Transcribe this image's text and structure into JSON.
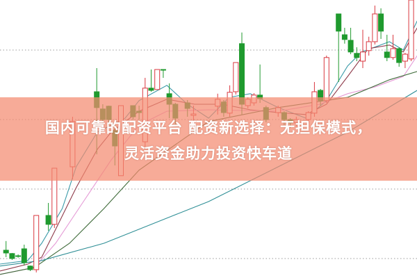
{
  "headline": {
    "line1": "国内可靠的配资平台 配资新选择：无担保模式，",
    "line2": "灵活资金助力投资快车道"
  },
  "chart_data": {
    "type": "candlestick",
    "title": "",
    "xlabel": "",
    "ylabel": "",
    "grid": true,
    "ylim": [
      0,
      100
    ],
    "colors": {
      "up": "#d9363e",
      "down": "#1f9a2e",
      "banner": "#f48a70"
    },
    "candles_fields": [
      "x",
      "open",
      "close",
      "high",
      "low"
    ],
    "candles": [
      [
        1,
        10,
        9,
        13.3,
        7.5
      ],
      [
        2,
        8.8,
        7,
        9,
        6.5
      ],
      [
        3,
        8,
        7.8,
        8.5,
        7.3
      ],
      [
        4,
        10.5,
        5.5,
        12,
        4.5
      ],
      [
        5,
        4.3,
        3,
        4.5,
        2.5
      ],
      [
        6,
        3,
        22.5,
        22.5,
        2
      ],
      [
        8,
        22.5,
        19.3,
        27,
        17
      ],
      [
        9,
        19.3,
        39.5,
        39.5,
        18
      ],
      [
        12,
        40,
        56.3,
        58,
        35.5
      ],
      [
        16,
        67,
        61.3,
        75.5,
        44.5
      ],
      [
        17,
        60.8,
        57,
        62.5,
        55
      ],
      [
        18,
        61.8,
        57,
        62,
        55
      ],
      [
        19,
        53,
        47.5,
        55,
        40.5
      ],
      [
        20,
        36.8,
        62,
        62,
        36.8
      ],
      [
        22,
        62,
        58,
        62,
        57
      ],
      [
        23,
        60,
        59.5,
        62,
        57
      ],
      [
        24,
        49,
        68.3,
        72,
        47
      ],
      [
        25,
        68.3,
        67.5,
        75,
        67
      ],
      [
        26,
        67.8,
        75,
        75,
        67.8
      ],
      [
        27,
        75,
        74.8,
        75,
        72
      ],
      [
        28,
        66.3,
        62.5,
        70,
        57.5
      ],
      [
        29,
        62.5,
        57.5,
        63,
        55
      ],
      [
        31,
        63,
        61,
        64,
        58
      ],
      [
        32,
        58.5,
        59,
        62,
        56
      ],
      [
        36,
        61.8,
        64.3,
        66.3,
        58.8
      ],
      [
        37,
        63.3,
        59.5,
        64,
        58
      ],
      [
        38,
        59.3,
        66.8,
        69.3,
        58
      ],
      [
        39,
        67,
        77.5,
        77.5,
        66
      ],
      [
        40,
        84.3,
        62.5,
        88.3,
        58.8
      ],
      [
        41,
        62,
        64.3,
        65,
        61
      ],
      [
        42,
        63,
        65.8,
        66.5,
        62
      ],
      [
        43,
        65.8,
        64.5,
        76.8,
        63
      ],
      [
        44,
        61.3,
        57,
        62,
        56
      ],
      [
        46,
        59.5,
        61.3,
        62,
        58
      ],
      [
        47,
        59.5,
        57,
        60,
        55
      ],
      [
        48,
        57,
        55.8,
        57.5,
        54
      ],
      [
        49,
        55.8,
        57,
        58,
        54.5
      ],
      [
        51,
        57,
        59.5,
        60,
        56
      ],
      [
        52,
        59.3,
        67,
        70.5,
        58
      ],
      [
        53,
        67.5,
        63.8,
        68,
        62
      ],
      [
        54,
        63.8,
        79.3,
        80,
        63
      ],
      [
        56,
        95,
        88.8,
        95,
        70.5
      ],
      [
        57,
        87.5,
        85.8,
        90,
        84.3
      ],
      [
        58,
        85.5,
        81.3,
        90,
        80.5
      ],
      [
        59,
        80.8,
        79.3,
        83,
        78
      ],
      [
        60,
        78,
        81.3,
        89.3,
        75.5
      ],
      [
        61,
        81.8,
        85,
        86.8,
        80
      ],
      [
        62,
        85,
        95,
        98,
        84
      ],
      [
        63,
        95,
        88.8,
        97,
        86
      ],
      [
        64,
        81.3,
        79.3,
        87.5,
        78
      ],
      [
        65,
        79.3,
        82.5,
        87.5,
        78.5
      ],
      [
        66,
        82.5,
        77.5,
        83,
        76
      ],
      [
        67,
        78,
        80.5,
        81,
        75.5
      ],
      [
        68,
        78.8,
        100,
        100,
        78
      ]
    ],
    "moving_averages": [
      {
        "color": "#3a9aa8",
        "x": [
          0,
          4.6,
          6.9,
          10.3,
          12.6,
          16.1,
          20.7,
          23,
          27.6,
          31,
          34.5,
          37.9,
          41.4,
          46,
          50.6,
          54,
          57.5,
          59.8,
          64.4,
          66.7,
          69
        ],
        "y": [
          5,
          6.3,
          12.5,
          25,
          40,
          52.5,
          57.5,
          63.8,
          69.3,
          62.5,
          57.5,
          65,
          66.3,
          61.3,
          57.5,
          63.8,
          76.3,
          81.3,
          85,
          82,
          92.5
        ]
      },
      {
        "color": "#8e3a4a",
        "x": [
          0,
          4.6,
          6.9,
          9.2,
          12.6,
          16.1,
          18.4,
          23,
          27.6,
          32.2,
          36.8,
          41.4,
          46,
          50.6,
          54,
          57.5,
          60.9,
          64.4,
          66.7,
          69
        ],
        "y": [
          2.5,
          5,
          7.5,
          17.5,
          32.5,
          46.3,
          52.5,
          60,
          64.3,
          62.5,
          62.5,
          60.5,
          59.5,
          58.8,
          62.5,
          72.5,
          82.5,
          83.8,
          81.3,
          90
        ]
      },
      {
        "color": "#e59ad6",
        "x": [
          0,
          5.7,
          9.2,
          13.8,
          18.4,
          23,
          27.6,
          34.5,
          46,
          52.9,
          57.5,
          62.1,
          66.7,
          69
        ],
        "y": [
          1.3,
          3.8,
          12.5,
          27.5,
          42.5,
          55,
          60,
          60.5,
          60,
          62.5,
          66.3,
          68.8,
          72.5,
          80
        ]
      },
      {
        "color": "#3f6b3a",
        "x": [
          0,
          5.7,
          11.5,
          17.2,
          23,
          28.7,
          34.5,
          46,
          57.5,
          64.4,
          69
        ],
        "y": [
          1.3,
          3.8,
          12.5,
          25,
          38.8,
          47.5,
          56.3,
          61.3,
          65,
          71.3,
          74.3
        ]
      },
      {
        "color": "#2f8f96",
        "x": [
          0,
          6.9,
          17.2,
          28.7,
          34.5,
          46,
          57.5,
          69
        ],
        "y": [
          4.3,
          6.3,
          12.5,
          22.5,
          27.5,
          40,
          52.5,
          67.5
        ]
      }
    ]
  }
}
